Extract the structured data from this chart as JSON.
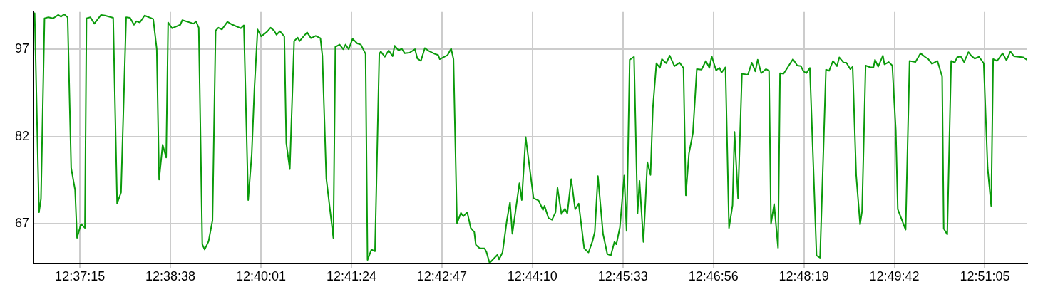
{
  "chart_data": {
    "type": "line",
    "x": [
      12.609,
      12.6093,
      12.6104,
      12.6109,
      12.6118,
      12.6128,
      12.614,
      12.6153,
      12.616,
      12.6168,
      12.6177,
      12.6186,
      12.6196,
      12.6201,
      12.6211,
      12.6221,
      12.6225,
      12.6235,
      12.6245,
      12.6262,
      12.6272,
      12.6293,
      12.6303,
      12.6313,
      12.6326,
      12.6336,
      12.6346,
      12.6352,
      12.6361,
      12.6373,
      12.6395,
      12.6404,
      12.641,
      12.6419,
      12.6428,
      12.6433,
      12.6443,
      12.6464,
      12.6469,
      12.6498,
      12.6504,
      12.6511,
      12.652,
      12.6526,
      12.6536,
      12.6546,
      12.6554,
      12.6561,
      12.657,
      12.6584,
      12.6594,
      12.6618,
      12.6626,
      12.6637,
      12.6646,
      12.6653,
      12.6661,
      12.667,
      12.6685,
      12.6694,
      12.6703,
      12.6709,
      12.6718,
      12.6729,
      12.6734,
      12.6743,
      12.6754,
      12.6763,
      12.6768,
      12.6787,
      12.6797,
      12.6809,
      12.6821,
      12.6826,
      12.6836,
      12.6854,
      12.6859,
      12.687,
      12.6879,
      12.6885,
      12.6893,
      12.6903,
      12.6915,
      12.6924,
      12.6936,
      12.6941,
      12.6951,
      12.696,
      12.6971,
      12.6975,
      12.6985,
      12.6995,
      12.7005,
      12.701,
      12.702,
      12.7028,
      12.7036,
      12.7048,
      12.7062,
      12.7068,
      12.7077,
      12.7087,
      12.7095,
      12.7112,
      12.7121,
      12.7125,
      12.7145,
      12.7154,
      12.716,
      12.7169,
      12.7179,
      12.7185,
      12.7195,
      12.7204,
      12.7213,
      12.7217,
      12.7227,
      12.7239,
      12.7244,
      12.7252,
      12.7272,
      12.7276,
      12.7285,
      12.7296,
      12.7304,
      12.731,
      12.7328,
      12.7334,
      12.7344,
      12.7364,
      12.7377,
      12.7388,
      12.7392,
      12.7402,
      12.7411,
      12.742,
      12.7425,
      12.7435,
      12.7444,
      12.745,
      12.746,
      12.747,
      12.7479,
      12.7493,
      12.7504,
      12.7514,
      12.752,
      12.7528,
      12.7541,
      12.7552,
      12.7561,
      12.757,
      12.7575,
      12.7584,
      12.7595,
      12.7601,
      12.7609,
      12.762,
      12.7629,
      12.7634,
      12.7644,
      12.7654,
      12.7662,
      12.7668,
      12.7677,
      12.7686,
      12.7691,
      12.7702,
      12.7711,
      12.7723,
      12.7736,
      12.7746,
      12.7752,
      12.776,
      12.777,
      12.778,
      12.7792,
      12.7803,
      12.7812,
      12.7818,
      12.7829,
      12.7838,
      12.7843,
      12.7853,
      12.7862,
      12.7871,
      12.7876,
      12.7885,
      12.7895,
      12.791,
      12.792,
      12.7929,
      12.7935,
      12.7944,
      12.7956,
      12.7964,
      12.7969,
      12.7977,
      12.7987,
      12.7992,
      12.8001,
      12.8025,
      12.8036,
      12.8045,
      12.8052,
      12.8059,
      12.8068,
      12.8085,
      12.8094,
      12.8109,
      12.8117,
      12.8127,
      12.8137,
      12.8143,
      12.8154,
      12.8161,
      12.8171,
      12.8177,
      12.8186,
      12.8196,
      12.8201,
      12.821,
      12.8222,
      12.823,
      12.8234,
      12.8242,
      12.8254,
      12.8258,
      12.8269,
      12.8278,
      12.8287,
      12.8292,
      12.8312,
      12.8322,
      12.8337,
      12.835,
      12.8361,
      12.837,
      12.8379,
      12.8393,
      12.8405,
      12.8409,
      12.8418,
      12.8428,
      12.8437,
      12.8443,
      12.8452,
      12.8461,
      12.8472,
      12.8479,
      12.8488,
      12.8499,
      12.8511,
      12.8521,
      12.853,
      12.8535,
      12.8545,
      12.8559,
      12.8569,
      12.8579,
      12.8588,
      12.86,
      12.8612,
      12.8621
    ],
    "series": [
      {
        "color": "#0a9a0a",
        "values": [
          103.2,
          103.2,
          69.0,
          71.3,
          102.3,
          102.5,
          102.3,
          102.9,
          102.6,
          103.0,
          102.5,
          76.6,
          72.8,
          64.6,
          67.0,
          66.3,
          102.3,
          102.5,
          101.4,
          102.9,
          102.8,
          102.4,
          70.5,
          72.4,
          102.5,
          102.4,
          101.2,
          101.8,
          101.6,
          102.8,
          102.2,
          97.0,
          74.6,
          80.6,
          78.4,
          101.6,
          100.6,
          101.2,
          102.0,
          101.4,
          101.8,
          100.7,
          63.5,
          62.6,
          64.0,
          67.6,
          100.2,
          100.7,
          100.4,
          101.7,
          101.3,
          100.6,
          101.1,
          71.1,
          79.0,
          90.5,
          100.4,
          99.2,
          100.0,
          100.7,
          100.2,
          99.5,
          100.1,
          99.2,
          80.9,
          76.4,
          98.4,
          99.0,
          98.4,
          99.9,
          98.9,
          99.3,
          98.9,
          95.9,
          74.8,
          64.6,
          97.4,
          97.8,
          97.0,
          97.8,
          97.0,
          98.8,
          98.0,
          97.8,
          96.2,
          60.8,
          62.6,
          62.3,
          96.2,
          96.6,
          95.7,
          96.8,
          95.8,
          97.6,
          96.8,
          97.1,
          96.3,
          96.4,
          97.0,
          95.4,
          95.0,
          97.2,
          96.8,
          96.2,
          96.0,
          95.3,
          96.0,
          97.1,
          95.3,
          67.1,
          68.9,
          68.3,
          69.0,
          66.3,
          65.6,
          63.4,
          62.8,
          62.8,
          62.2,
          60.3,
          61.7,
          60.9,
          62.1,
          67.6,
          70.7,
          65.3,
          74.0,
          71.1,
          81.9,
          71.4,
          71.0,
          69.4,
          70.1,
          68.0,
          67.7,
          69.0,
          73.2,
          68.7,
          69.6,
          68.8,
          74.7,
          69.5,
          70.5,
          62.8,
          62.1,
          64.0,
          65.6,
          75.2,
          65.3,
          61.8,
          61.6,
          63.9,
          63.5,
          66.4,
          75.3,
          65.8,
          95.2,
          95.7,
          68.8,
          74.4,
          63.9,
          77.6,
          75.4,
          86.9,
          94.6,
          93.8,
          95.3,
          94.6,
          95.9,
          94.1,
          94.7,
          93.8,
          71.9,
          79.1,
          82.6,
          93.6,
          93.5,
          95.0,
          93.8,
          95.8,
          93.4,
          93.8,
          93.0,
          93.9,
          66.3,
          70.2,
          82.8,
          71.4,
          92.8,
          92.6,
          94.7,
          93.2,
          95.2,
          92.9,
          93.6,
          93.3,
          67.0,
          70.4,
          62.9,
          92.9,
          92.8,
          95.3,
          94.2,
          94.1,
          93.2,
          92.9,
          93.8,
          61.6,
          61.2,
          93.5,
          93.3,
          95.0,
          94.1,
          95.6,
          94.7,
          94.7,
          93.6,
          94.0,
          75.4,
          66.9,
          69.2,
          94.2,
          93.9,
          93.9,
          95.2,
          94.0,
          95.9,
          94.4,
          94.8,
          94.2,
          83.0,
          69.5,
          66.0,
          95.0,
          94.8,
          96.3,
          95.7,
          95.3,
          94.5,
          95.0,
          92.3,
          66.2,
          65.2,
          95.0,
          94.7,
          95.6,
          95.8,
          94.8,
          96.5,
          95.9,
          95.4,
          95.7,
          94.6,
          76.6,
          70.1,
          95.3,
          95.0,
          96.3,
          95.1,
          96.6,
          95.8,
          95.7,
          95.6,
          95.2
        ]
      }
    ],
    "xlim": [
      12.609,
      12.8622
    ],
    "xticks": [
      {
        "value": 12.620833,
        "label": "12:37:15"
      },
      {
        "value": 12.643889,
        "label": "12:38:38"
      },
      {
        "value": 12.666944,
        "label": "12:40:01"
      },
      {
        "value": 12.69,
        "label": "12:41:24"
      },
      {
        "value": 12.713056,
        "label": "12:42:47"
      },
      {
        "value": 12.736111,
        "label": "12:44:10"
      },
      {
        "value": 12.759167,
        "label": "12:45:33"
      },
      {
        "value": 12.782222,
        "label": "12:46:56"
      },
      {
        "value": 12.805278,
        "label": "12:48:19"
      },
      {
        "value": 12.828333,
        "label": "12:49:42"
      },
      {
        "value": 12.851389,
        "label": "12:51:05"
      }
    ],
    "ylim": [
      60.2,
      103.4
    ],
    "yticks": [
      67,
      82,
      97
    ],
    "grid": true,
    "legend": false,
    "marker": "none",
    "line_style": "solid"
  }
}
